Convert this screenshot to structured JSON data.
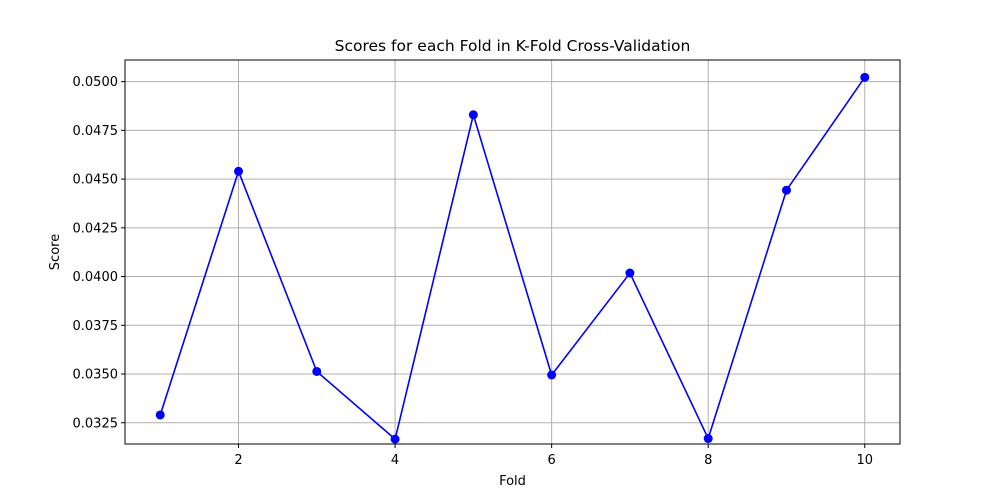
{
  "chart_data": {
    "type": "line",
    "title": "Scores for each Fold in K-Fold Cross-Validation",
    "xlabel": "Fold",
    "ylabel": "Score",
    "x": [
      1,
      2,
      3,
      4,
      5,
      6,
      7,
      8,
      9,
      10
    ],
    "series": [
      {
        "values": [
          0.0329,
          0.0454,
          0.03513,
          0.03166,
          0.0483,
          0.03495,
          0.04018,
          0.03169,
          0.04443,
          0.05022
        ],
        "color": "#0000ff",
        "marker": "circle"
      }
    ],
    "xlim": [
      0.55,
      10.45
    ],
    "ylim": [
      0.03141,
      0.05111
    ],
    "xticks": [
      2,
      4,
      6,
      8,
      10
    ],
    "xtick_labels": [
      "2",
      "4",
      "6",
      "8",
      "10"
    ],
    "yticks": [
      0.0325,
      0.035,
      0.0375,
      0.04,
      0.0425,
      0.045,
      0.0475,
      0.05
    ],
    "ytick_labels": [
      "0.0325",
      "0.0350",
      "0.0375",
      "0.0400",
      "0.0425",
      "0.0450",
      "0.0475",
      "0.0500"
    ],
    "grid": true,
    "grid_color": "#b0b0b0",
    "legend": "none"
  }
}
